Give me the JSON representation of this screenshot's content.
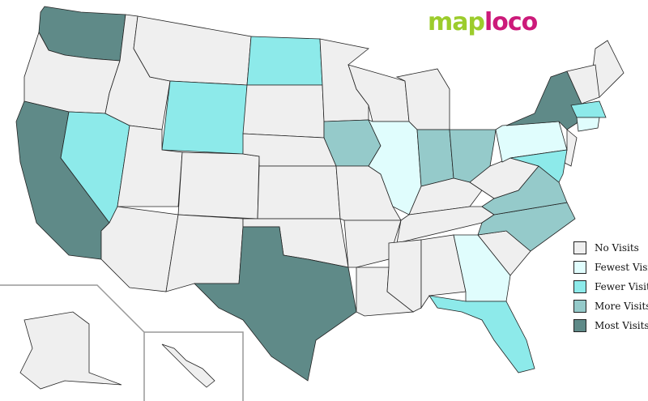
{
  "logo": {
    "part1": "map",
    "part2": "loco",
    "color1": "#9ccc2c",
    "color2": "#cc1a7a"
  },
  "legend": [
    {
      "key": "none",
      "label": "No Visits",
      "color": "#efefef"
    },
    {
      "key": "fewest",
      "label": "Fewest Visits",
      "color": "#e0fdfd"
    },
    {
      "key": "fewer",
      "label": "Fewer Visits",
      "color": "#8deaea"
    },
    {
      "key": "more",
      "label": "More Visits",
      "color": "#95caca"
    },
    {
      "key": "most",
      "label": "Most Visits",
      "color": "#5f8a88"
    }
  ],
  "states": {
    "WA": "most",
    "CA": "most",
    "TX": "most",
    "NY": "most",
    "IA": "more",
    "IN": "more",
    "OH": "more",
    "VA": "more",
    "NC": "more",
    "NV": "fewer",
    "WY": "fewer",
    "ND": "fewer",
    "MA": "fewer",
    "FL": "fewer",
    "MD": "fewer",
    "IL": "fewest",
    "PA": "fewest",
    "GA": "fewest",
    "CT": "fewest"
  }
}
